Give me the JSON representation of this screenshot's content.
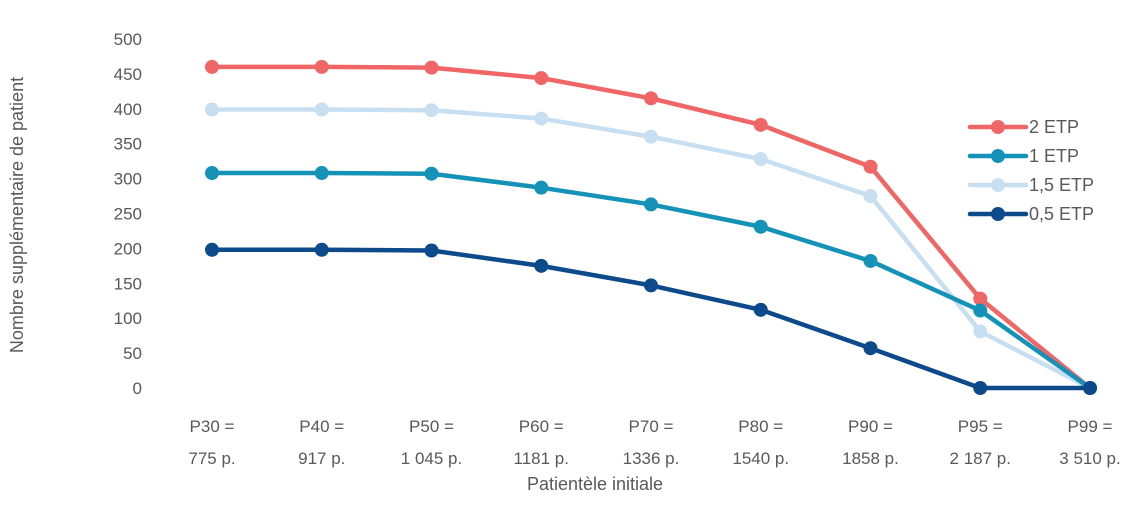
{
  "chart_data": {
    "type": "line",
    "categories": [
      [
        "P30 =",
        "775 p."
      ],
      [
        "P40 =",
        "917 p."
      ],
      [
        "P50 =",
        "1 045 p."
      ],
      [
        "P60 =",
        "1181 p."
      ],
      [
        "P70 =",
        "1336 p."
      ],
      [
        "P80 =",
        "1540 p."
      ],
      [
        "P90 =",
        "1858 p."
      ],
      [
        "P95 =",
        "2 187 p."
      ],
      [
        "P99 =",
        "3 510 p."
      ]
    ],
    "series": [
      {
        "name": "2 ETP",
        "color": "#f06565",
        "values": [
          460,
          460,
          459,
          444,
          415,
          377,
          317,
          128,
          0
        ]
      },
      {
        "name": "1 ETP",
        "color": "#1592b8",
        "values": [
          308,
          308,
          307,
          287,
          263,
          231,
          182,
          111,
          0
        ]
      },
      {
        "name": "1,5 ETP",
        "color": "#c7dff0",
        "values": [
          399,
          399,
          398,
          386,
          360,
          328,
          275,
          81,
          0
        ]
      },
      {
        "name": "0,5 ETP",
        "color": "#0c4a8c",
        "values": [
          198,
          198,
          197,
          175,
          147,
          112,
          57,
          0,
          0
        ]
      }
    ],
    "xlabel": "Patientèle initiale",
    "ylabel": "Nombre  supplémentaire de patient",
    "ylim": [
      0,
      500
    ],
    "yticks": [
      0,
      50,
      100,
      150,
      200,
      250,
      300,
      350,
      400,
      450,
      500
    ],
    "grid": false,
    "legend_position": "right"
  }
}
